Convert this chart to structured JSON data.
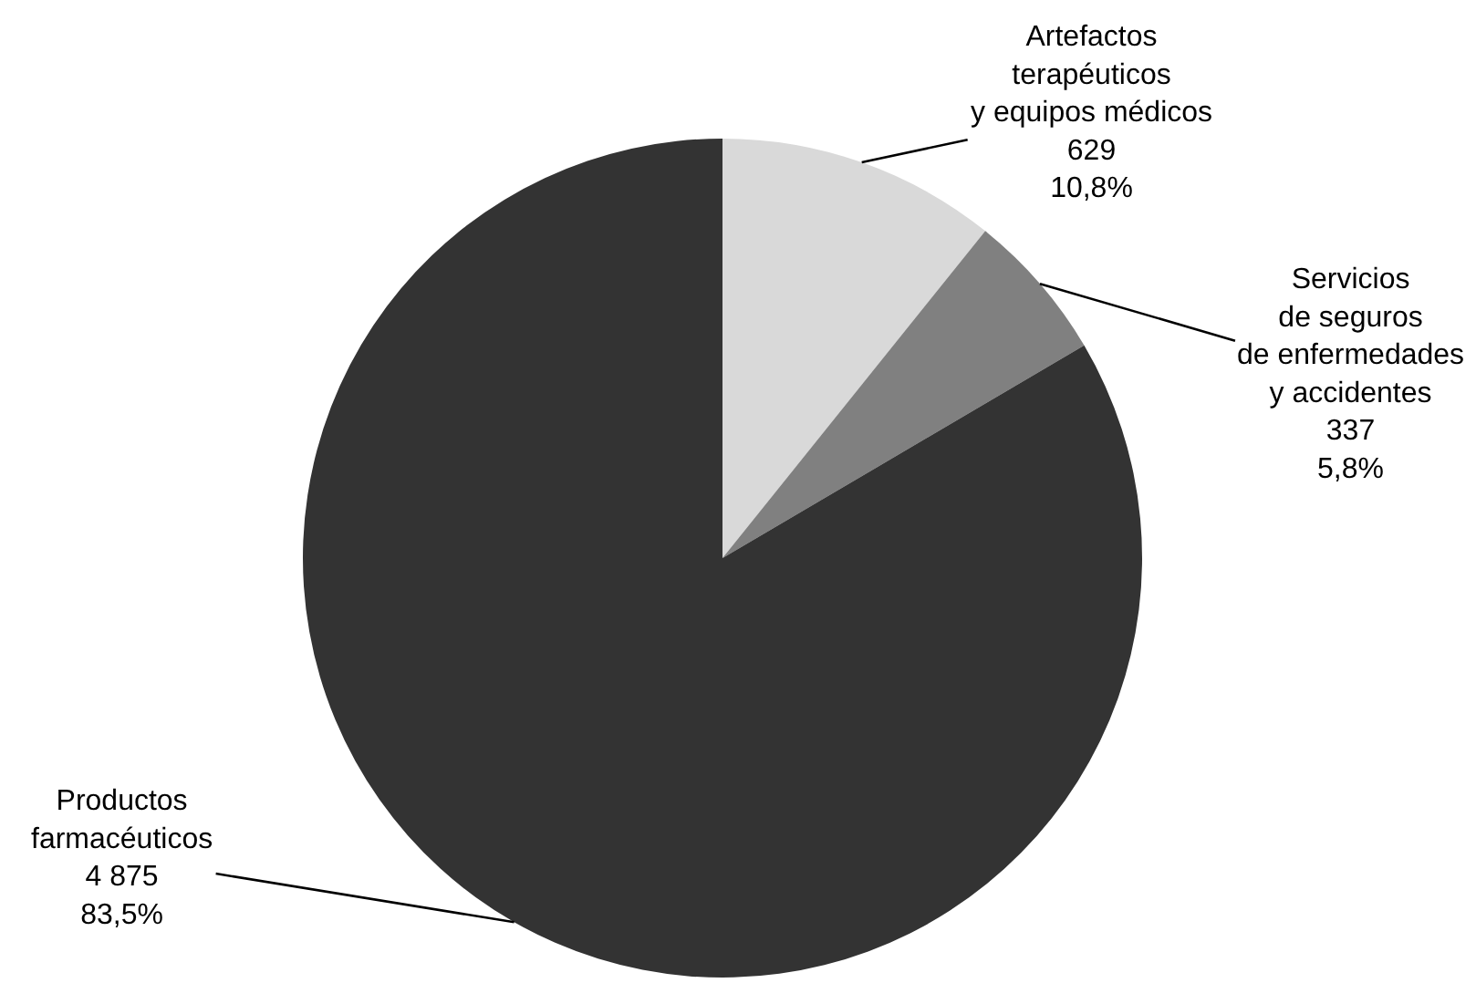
{
  "chart_data": {
    "type": "pie",
    "categories": [
      "Artefactos\nterapéuticos\ny equipos médicos",
      "Servicios\nde seguros\nde enfermedades\ny accidentes",
      "Productos\nfarmacéuticos"
    ],
    "values": [
      629,
      337,
      4875
    ],
    "colors": [
      "#d9d9d9",
      "#808080",
      "#333333"
    ],
    "value_labels": [
      "629\n10,8%",
      "337\n5,8%",
      "4 875\n83,5%"
    ]
  }
}
